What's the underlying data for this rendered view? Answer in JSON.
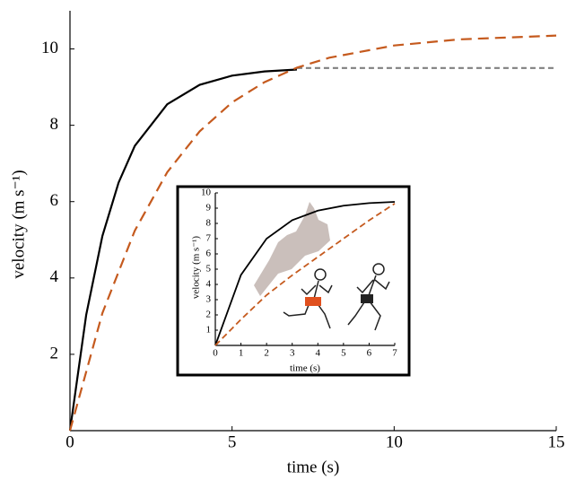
{
  "chart_data": [
    {
      "type": "line",
      "x_label": "time (s)",
      "y_label": "velocity (m s⁻¹)",
      "xlim": [
        0,
        15
      ],
      "ylim": [
        0,
        11
      ],
      "xticks": [
        0,
        5,
        10,
        15
      ],
      "yticks": [
        2,
        4,
        6,
        8,
        10
      ],
      "series": [
        {
          "color": "#000000",
          "dash": "none",
          "x": [
            0,
            0.5,
            1,
            1.5,
            2,
            3,
            4,
            5,
            6,
            7
          ],
          "values": [
            0,
            3.03,
            5.1,
            6.5,
            7.46,
            8.55,
            9.06,
            9.3,
            9.41,
            9.46
          ]
        },
        {
          "color": "#808080",
          "dash": "6 4",
          "x": [
            7,
            15
          ],
          "values": [
            9.5,
            9.5
          ]
        },
        {
          "color": "#c55a1e",
          "dash": "12 7",
          "x": [
            0,
            1,
            2,
            3,
            4,
            5,
            6,
            7,
            8,
            10,
            12,
            15
          ],
          "values": [
            0,
            3.08,
            5.24,
            6.77,
            7.84,
            8.6,
            9.13,
            9.51,
            9.77,
            10.09,
            10.25,
            10.35
          ]
        }
      ]
    },
    {
      "type": "line",
      "x_label": "time (s)",
      "y_label": "velocity (m s⁻¹)",
      "xlim": [
        0,
        7
      ],
      "ylim": [
        0,
        10
      ],
      "xticks": [
        0,
        1,
        2,
        3,
        4,
        5,
        6,
        7
      ],
      "yticks": [
        1,
        2,
        3,
        4,
        5,
        6,
        7,
        8,
        9,
        10
      ],
      "series": [
        {
          "color": "#000000",
          "dash": "none",
          "x": [
            0,
            1,
            2,
            3,
            4,
            5,
            6,
            7
          ],
          "values": [
            0,
            4.62,
            7.0,
            8.21,
            8.84,
            9.16,
            9.33,
            9.41
          ]
        },
        {
          "color": "#c55a1e",
          "dash": "7 4",
          "x": [
            0,
            1,
            2,
            3,
            4,
            5,
            6,
            7
          ],
          "values": [
            0,
            1.7,
            3.3,
            4.6,
            5.8,
            7.0,
            8.2,
            9.3
          ]
        }
      ]
    }
  ]
}
